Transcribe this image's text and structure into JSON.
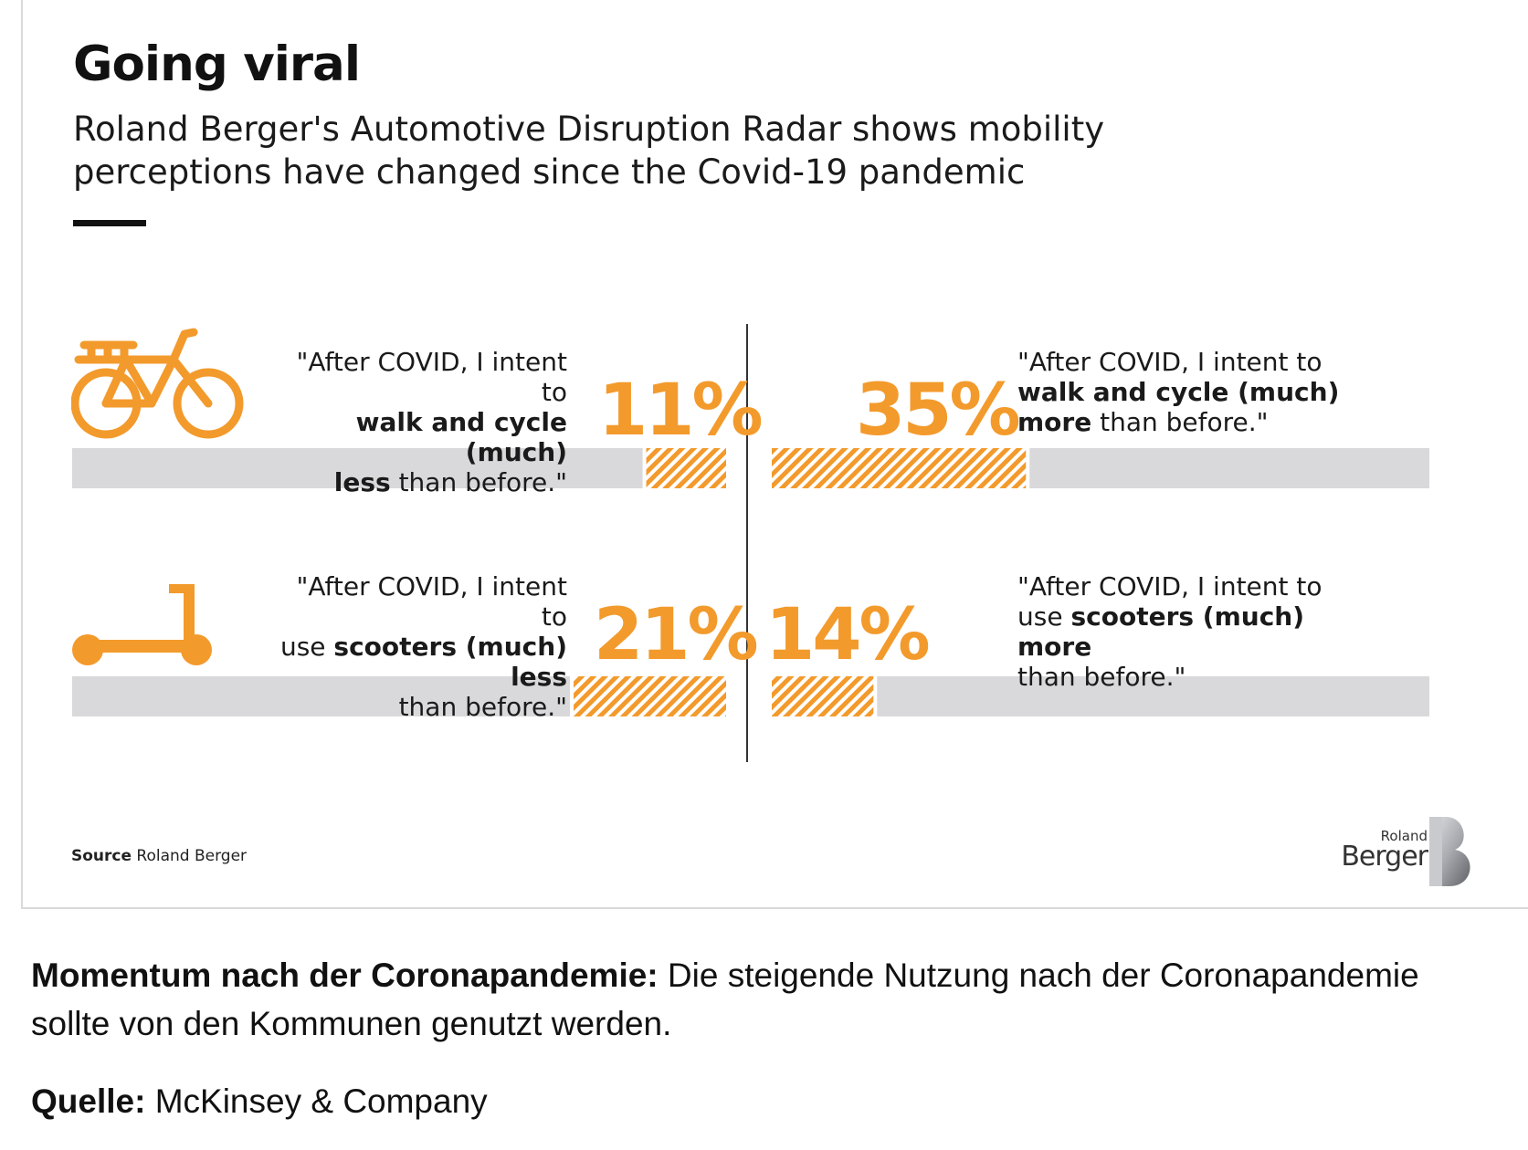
{
  "colors": {
    "accent": "#f39a2c",
    "bar_gray": "#d9d9db",
    "text": "#111111"
  },
  "chart_data": {
    "type": "bar",
    "title": "Going viral",
    "subtitle": "Roland Berger's Automotive Disruption Radar shows mobility perceptions have changed since the Covid-19 pandemic",
    "xlim": [
      0,
      100
    ],
    "series": [
      {
        "name": "walk-cycle-less",
        "mode": "walk and cycle",
        "direction": "less",
        "value": 11,
        "label": "11%",
        "quote_l1": "\"After COVID, I intent to",
        "quote_b1": "walk and cycle (much)",
        "quote_b2": "less",
        "quote_t2": " than before.\""
      },
      {
        "name": "walk-cycle-more",
        "mode": "walk and cycle",
        "direction": "more",
        "value": 35,
        "label": "35%",
        "quote_l1": "\"After COVID, I intent to",
        "quote_b1": "walk and cycle (much)",
        "quote_b2": "more",
        "quote_t2": " than before.\""
      },
      {
        "name": "scooters-less",
        "mode": "scooters",
        "direction": "less",
        "value": 21,
        "label": "21%",
        "quote_l1": "\"After COVID, I intent to",
        "quote_p2": "use ",
        "quote_b2": "scooters (much) less",
        "quote_t3": "than before.\""
      },
      {
        "name": "scooters-more",
        "mode": "scooters",
        "direction": "more",
        "value": 14,
        "label": "14%",
        "quote_l1": "\"After COVID, I intent to",
        "quote_p2": "use ",
        "quote_b2": "scooters (much) more",
        "quote_t3": "than before.\""
      }
    ]
  },
  "source": {
    "label": "Source",
    "value": " Roland Berger"
  },
  "logo": {
    "top": "Roland",
    "bottom": "Berger"
  },
  "caption": {
    "bold": "Momentum nach der Coronapandemie:",
    "text": " Die steigende Nutzung nach der Coronapandemie sollte von den Kommunen genutzt werden."
  },
  "credit": {
    "label": "Quelle:",
    "value": " McKinsey & Company"
  }
}
